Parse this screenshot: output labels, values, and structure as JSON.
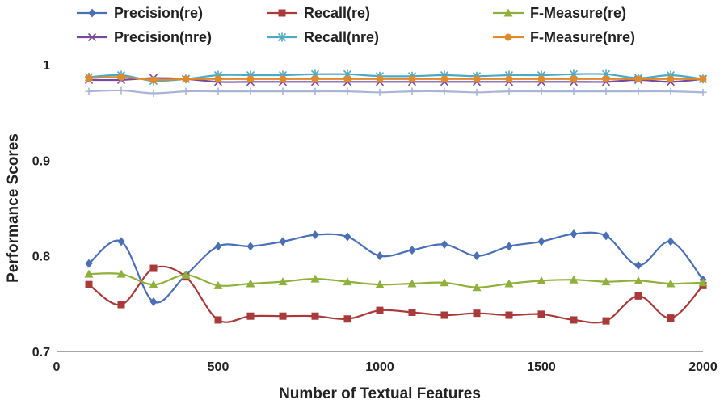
{
  "chart_data": {
    "type": "line",
    "xlabel": "Number of Textual Features",
    "ylabel": "Performance Scores",
    "xlim": [
      0,
      2000
    ],
    "ylim": [
      0.7,
      1.0
    ],
    "xticks": [
      "0",
      "500",
      "1000",
      "1500",
      "2000"
    ],
    "yticks": [
      "0.7",
      "0.8",
      "0.9",
      "1"
    ],
    "grid": false,
    "legend_position": "top",
    "x": [
      100,
      200,
      300,
      400,
      500,
      600,
      700,
      800,
      900,
      1000,
      1100,
      1200,
      1300,
      1400,
      1500,
      1600,
      1700,
      1800,
      1900,
      2000
    ],
    "series": [
      {
        "name": "Precision(re)",
        "color": "#4a6fb5",
        "marker": "diamond",
        "values": [
          0.792,
          0.815,
          0.752,
          0.78,
          0.81,
          0.81,
          0.815,
          0.822,
          0.82,
          0.8,
          0.806,
          0.812,
          0.8,
          0.81,
          0.815,
          0.823,
          0.821,
          0.79,
          0.815,
          0.775
        ]
      },
      {
        "name": "Recall(re)",
        "color": "#a83a3a",
        "marker": "square",
        "values": [
          0.77,
          0.749,
          0.787,
          0.778,
          0.733,
          0.737,
          0.737,
          0.737,
          0.734,
          0.743,
          0.741,
          0.738,
          0.74,
          0.738,
          0.739,
          0.733,
          0.732,
          0.758,
          0.735,
          0.769
        ]
      },
      {
        "name": "F-Measure(re)",
        "color": "#8fb03c",
        "marker": "triangle",
        "values": [
          0.781,
          0.781,
          0.77,
          0.78,
          0.769,
          0.771,
          0.773,
          0.776,
          0.773,
          0.77,
          0.771,
          0.772,
          0.767,
          0.771,
          0.774,
          0.775,
          0.773,
          0.774,
          0.771,
          0.772
        ]
      },
      {
        "name": "Precision(nre)",
        "color": "#7a4a9a",
        "marker": "x",
        "values": [
          0.984,
          0.984,
          0.986,
          0.985,
          0.982,
          0.982,
          0.982,
          0.982,
          0.982,
          0.982,
          0.982,
          0.982,
          0.982,
          0.982,
          0.982,
          0.982,
          0.982,
          0.984,
          0.982,
          0.985
        ]
      },
      {
        "name": "Recall(nre)",
        "color": "#4fa9c4",
        "marker": "star",
        "values": [
          0.987,
          0.989,
          0.983,
          0.985,
          0.989,
          0.989,
          0.989,
          0.99,
          0.99,
          0.988,
          0.988,
          0.989,
          0.988,
          0.989,
          0.989,
          0.99,
          0.99,
          0.986,
          0.989,
          0.985
        ]
      },
      {
        "name": "F-Measure(nre)",
        "color": "#e08a2c",
        "marker": "circle",
        "values": [
          0.986,
          0.987,
          0.984,
          0.985,
          0.985,
          0.985,
          0.985,
          0.985,
          0.985,
          0.985,
          0.985,
          0.985,
          0.985,
          0.985,
          0.985,
          0.985,
          0.985,
          0.985,
          0.985,
          0.985
        ]
      },
      {
        "name": "",
        "color": "#a9b4d8",
        "marker": "plus",
        "values": [
          0.972,
          0.973,
          0.97,
          0.972,
          0.972,
          0.972,
          0.972,
          0.972,
          0.972,
          0.971,
          0.972,
          0.972,
          0.971,
          0.972,
          0.972,
          0.972,
          0.972,
          0.972,
          0.972,
          0.971
        ]
      }
    ]
  }
}
